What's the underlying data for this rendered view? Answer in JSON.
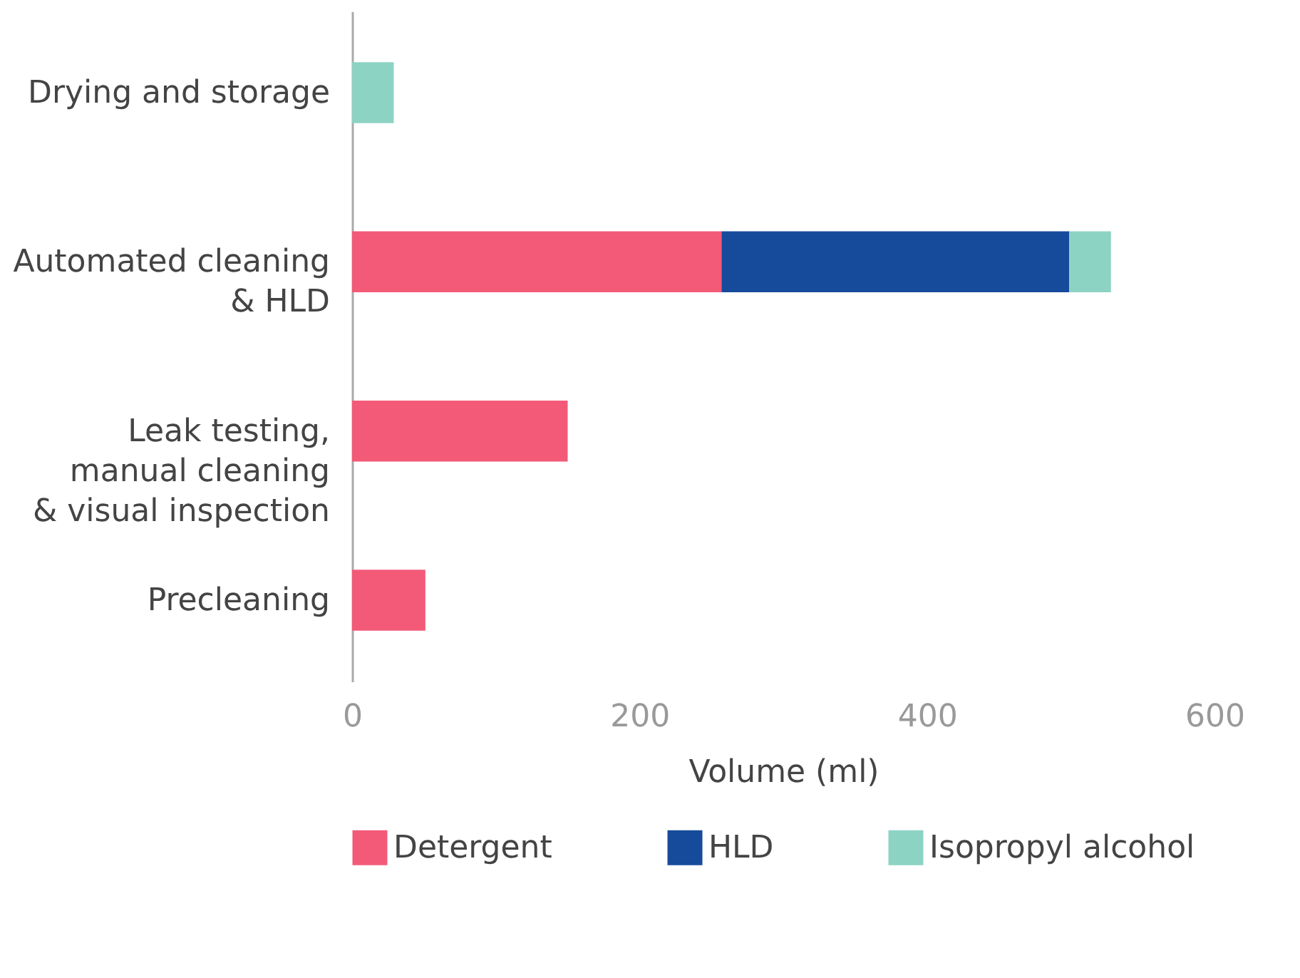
{
  "chart_data": {
    "type": "bar",
    "orientation": "horizontal",
    "stacked": true,
    "xlabel": "Volume (ml)",
    "categories": [
      "Drying and storage",
      "Automated cleaning\n& HLD",
      "Leak testing,\nmanual cleaning\n& visual inspection",
      "Precleaning"
    ],
    "series": [
      {
        "name": "Detergent",
        "color": "#f25a78",
        "values": [
          null,
          257,
          150,
          51
        ]
      },
      {
        "name": "HLD",
        "color": "#164a9b",
        "values": [
          null,
          242,
          null,
          null
        ]
      },
      {
        "name": "Isopropyl alcohol",
        "color": "#8dd3c4",
        "values": [
          29,
          29,
          null,
          null
        ]
      }
    ],
    "xlim": [
      0,
      600
    ],
    "xticks": [
      0,
      200,
      400,
      600
    ],
    "grid": false,
    "legend": "bottom"
  }
}
